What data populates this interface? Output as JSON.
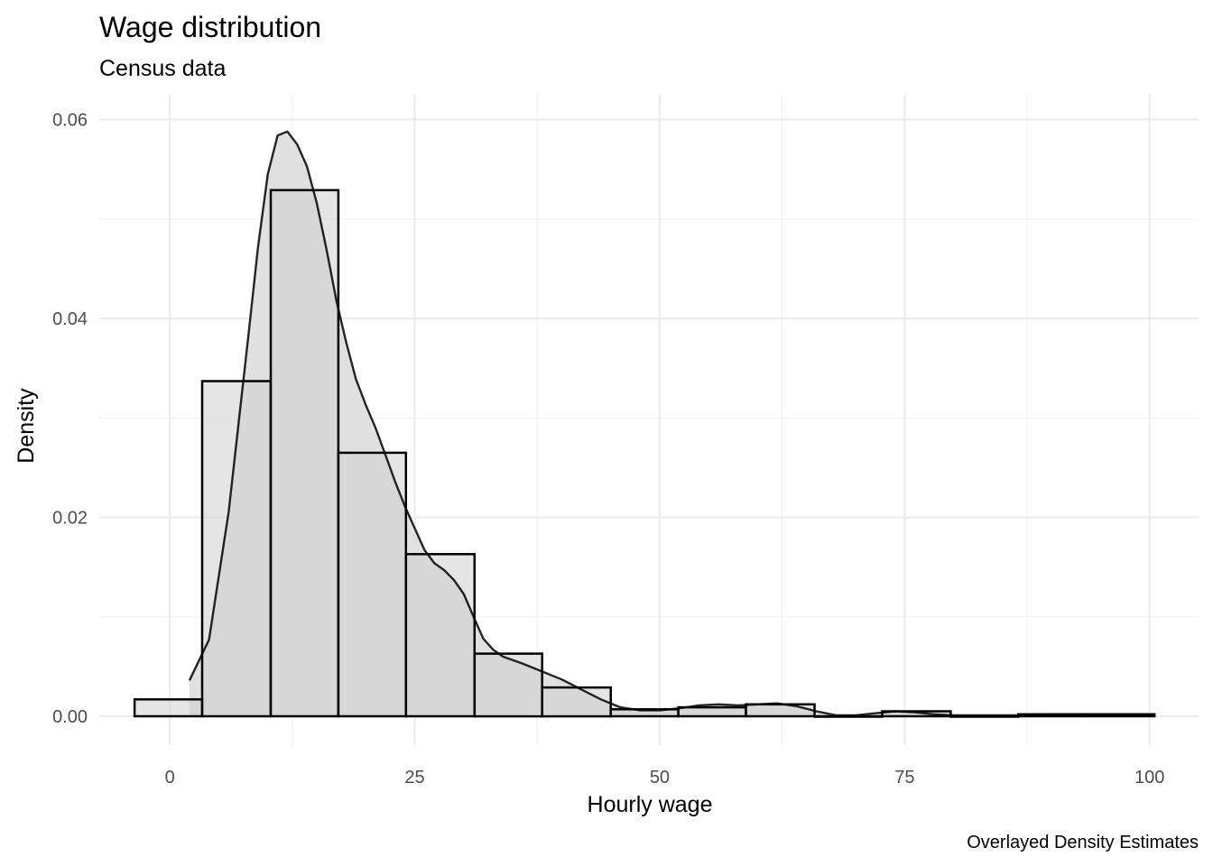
{
  "chart_data": {
    "type": "histogram",
    "title": "Wage distribution",
    "subtitle": "Census data",
    "caption": "Overlayed Density Estimates",
    "xlabel": "Hourly wage",
    "ylabel": "Density",
    "xlim": [
      -7.2,
      105.0
    ],
    "ylim": [
      -0.0029,
      0.0625
    ],
    "x_ticks": [
      0,
      25,
      50,
      75,
      100
    ],
    "x_tick_labels": [
      "0",
      "25",
      "50",
      "75",
      "100"
    ],
    "y_ticks": [
      0.0,
      0.02,
      0.04,
      0.06
    ],
    "y_tick_labels": [
      "0.00",
      "0.02",
      "0.04",
      "0.06"
    ],
    "grid": true,
    "bins": [
      {
        "x0": -3.6,
        "x1": 3.3,
        "density": 0.0017
      },
      {
        "x0": 3.3,
        "x1": 10.3,
        "density": 0.0337
      },
      {
        "x0": 10.3,
        "x1": 17.2,
        "density": 0.0529
      },
      {
        "x0": 17.2,
        "x1": 24.1,
        "density": 0.0265
      },
      {
        "x0": 24.1,
        "x1": 31.1,
        "density": 0.0163
      },
      {
        "x0": 31.1,
        "x1": 38.0,
        "density": 0.0063
      },
      {
        "x0": 38.0,
        "x1": 45.0,
        "density": 0.0029
      },
      {
        "x0": 45.0,
        "x1": 51.9,
        "density": 0.0007
      },
      {
        "x0": 51.9,
        "x1": 58.8,
        "density": 0.0009
      },
      {
        "x0": 58.8,
        "x1": 65.8,
        "density": 0.0012
      },
      {
        "x0": 65.8,
        "x1": 72.7,
        "density": 0.0
      },
      {
        "x0": 72.7,
        "x1": 79.7,
        "density": 0.0005
      },
      {
        "x0": 79.7,
        "x1": 86.6,
        "density": 0.0
      },
      {
        "x0": 86.6,
        "x1": 93.5,
        "density": 0.0002
      },
      {
        "x0": 93.5,
        "x1": 100.5,
        "density": 0.0002
      }
    ],
    "density_curve": {
      "x": [
        2.0,
        4.0,
        6.0,
        8.0,
        9.0,
        10.0,
        11.0,
        12.0,
        13.0,
        14.0,
        15.0,
        16.0,
        17.0,
        18.0,
        19.0,
        20.0,
        21.0,
        22.0,
        23.0,
        24.0,
        25.0,
        26.0,
        27.0,
        28.0,
        29.0,
        30.0,
        31.0,
        32.0,
        33.0,
        34.0,
        36.0,
        38.0,
        40.0,
        42.0,
        44.0,
        46.0,
        48.0,
        50.0,
        52.0,
        54.0,
        56.0,
        58.0,
        60.0,
        62.0,
        64.0,
        66.0,
        68.0,
        70.0,
        72.0,
        74.0,
        76.0,
        78.0,
        80.0,
        82.0,
        84.0,
        86.0,
        88.0,
        90.0,
        92.0,
        94.0,
        96.0,
        98.0,
        100.0
      ],
      "y": [
        0.0036,
        0.0077,
        0.0205,
        0.0381,
        0.0472,
        0.0545,
        0.0584,
        0.0588,
        0.0575,
        0.0553,
        0.0516,
        0.0469,
        0.0418,
        0.0376,
        0.0339,
        0.0313,
        0.029,
        0.0263,
        0.0236,
        0.0211,
        0.0189,
        0.0167,
        0.0154,
        0.0147,
        0.0137,
        0.0123,
        0.01,
        0.0078,
        0.0067,
        0.006,
        0.0053,
        0.0045,
        0.0037,
        0.0027,
        0.0017,
        0.0009,
        0.0006,
        0.0006,
        0.0008,
        0.0011,
        0.0012,
        0.0011,
        0.0012,
        0.0013,
        0.001,
        0.0005,
        0.0001,
        0.0001,
        0.0003,
        0.0005,
        0.0004,
        0.0002,
        0.0001,
        0.0001,
        0.0001,
        0.0001,
        0.0001,
        0.0002,
        0.0002,
        0.0002,
        0.0002,
        0.0002,
        0.0002
      ]
    },
    "colors": {
      "bar_fill": "#d0d0d0",
      "bar_stroke": "#000000",
      "density_fill": "#e0e0e0",
      "density_stroke": "#000000",
      "grid_major": "#ebebeb",
      "grid_minor": "#f3f3f3",
      "text": "#000000",
      "tick_text": "#4d4d4d"
    }
  }
}
